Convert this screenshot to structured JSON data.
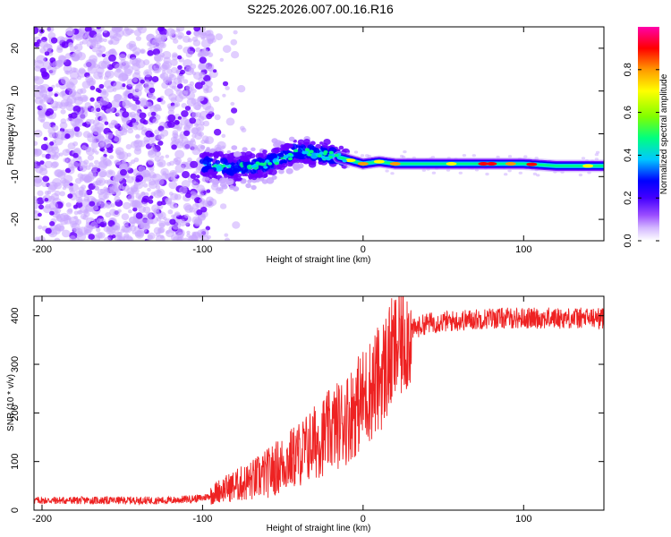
{
  "figure": {
    "title": "S225.2026.007.00.16.R16"
  },
  "chart_data": [
    {
      "type": "heatmap",
      "xlabel": "Height of straight line (km)",
      "ylabel": "Frequency (Hz)",
      "xlim": [
        -205,
        150
      ],
      "ylim": [
        -25,
        25
      ],
      "xticks": [
        -200,
        -100,
        0,
        100
      ],
      "yticks": [
        -20,
        -10,
        0,
        10,
        20
      ],
      "colorbar": {
        "label": "Normalized spectral amplitude",
        "range": [
          0,
          1
        ],
        "ticks": [
          "0.0",
          "0.2",
          "0.4",
          "0.6",
          "0.8"
        ],
        "colormap": [
          "#c8a6ff",
          "#6a00ff",
          "#0000ff",
          "#00c8ff",
          "#00ff80",
          "#80ff00",
          "#ffff00",
          "#ff9900",
          "#ff0000",
          "#ff00aa"
        ]
      },
      "ridge": {
        "description_free": true,
        "x": [
          -100,
          -80,
          -60,
          -40,
          -20,
          -10,
          0,
          10,
          20,
          40,
          60,
          80,
          100,
          120,
          150
        ],
        "y": [
          -7,
          -8,
          -7,
          -4,
          -5,
          -6,
          -7,
          -6.5,
          -7,
          -7,
          -7,
          -7,
          -7,
          -7.5,
          -7.5
        ]
      }
    },
    {
      "type": "line",
      "xlabel": "Height of straight line (km)",
      "ylabel": "SNR (10 * v/v)",
      "xlim": [
        -205,
        150
      ],
      "ylim": [
        0,
        440
      ],
      "xticks": [
        -200,
        -100,
        0,
        100
      ],
      "yticks": [
        0,
        100,
        200,
        300,
        400
      ],
      "series": [
        {
          "name": "SNR",
          "color": "#ee2222",
          "x": [
            -205,
            -180,
            -150,
            -120,
            -100,
            -95,
            -90,
            -80,
            -70,
            -60,
            -50,
            -40,
            -30,
            -20,
            -10,
            0,
            10,
            20,
            30,
            40,
            60,
            80,
            100,
            120,
            150
          ],
          "y": [
            20,
            20,
            20,
            20,
            25,
            30,
            40,
            50,
            60,
            75,
            95,
            115,
            140,
            165,
            190,
            230,
            270,
            330,
            370,
            385,
            390,
            395,
            395,
            395,
            395
          ]
        }
      ]
    }
  ]
}
